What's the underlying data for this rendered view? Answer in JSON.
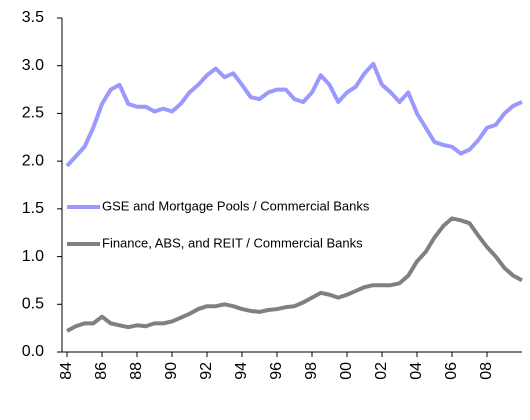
{
  "chart_data": {
    "type": "line",
    "x": [
      1984,
      1984.5,
      1985,
      1985.5,
      1986,
      1986.5,
      1987,
      1987.5,
      1988,
      1988.5,
      1989,
      1989.5,
      1990,
      1990.5,
      1991,
      1991.5,
      1992,
      1992.5,
      1993,
      1993.5,
      1994,
      1994.5,
      1995,
      1995.5,
      1996,
      1996.5,
      1997,
      1997.5,
      1998,
      1998.5,
      1999,
      1999.5,
      2000,
      2000.5,
      2001,
      2001.5,
      2002,
      2002.5,
      2003,
      2003.5,
      2004,
      2004.5,
      2005,
      2005.5,
      2006,
      2006.5,
      2007,
      2007.5,
      2008,
      2008.5,
      2009,
      2009.5,
      2010
    ],
    "series": [
      {
        "name": "GSE and Mortgage Pools / Commercial Banks",
        "color": "#9999ff",
        "values": [
          1.95,
          2.05,
          2.15,
          2.35,
          2.6,
          2.75,
          2.8,
          2.6,
          2.57,
          2.57,
          2.52,
          2.55,
          2.52,
          2.6,
          2.72,
          2.8,
          2.9,
          2.97,
          2.88,
          2.92,
          2.8,
          2.67,
          2.65,
          2.72,
          2.75,
          2.75,
          2.65,
          2.62,
          2.72,
          2.9,
          2.8,
          2.62,
          2.72,
          2.78,
          2.92,
          3.02,
          2.8,
          2.72,
          2.62,
          2.72,
          2.5,
          2.35,
          2.2,
          2.17,
          2.15,
          2.08,
          2.12,
          2.22,
          2.35,
          2.38,
          2.5,
          2.58,
          2.62
        ]
      },
      {
        "name": "Finance, ABS, and REIT / Commercial Banks",
        "color": "#808080",
        "values": [
          0.22,
          0.27,
          0.3,
          0.3,
          0.37,
          0.3,
          0.28,
          0.26,
          0.28,
          0.27,
          0.3,
          0.3,
          0.32,
          0.36,
          0.4,
          0.45,
          0.48,
          0.48,
          0.5,
          0.48,
          0.45,
          0.43,
          0.42,
          0.44,
          0.45,
          0.47,
          0.48,
          0.52,
          0.57,
          0.62,
          0.6,
          0.57,
          0.6,
          0.64,
          0.68,
          0.7,
          0.7,
          0.7,
          0.72,
          0.8,
          0.95,
          1.05,
          1.2,
          1.32,
          1.4,
          1.38,
          1.35,
          1.22,
          1.1,
          1.0,
          0.88,
          0.8,
          0.75
        ]
      }
    ],
    "xlim": [
      1984,
      2010
    ],
    "xticks": [
      {
        "value": 1984,
        "label": "84"
      },
      {
        "value": 1986,
        "label": "86"
      },
      {
        "value": 1988,
        "label": "88"
      },
      {
        "value": 1990,
        "label": "90"
      },
      {
        "value": 1992,
        "label": "92"
      },
      {
        "value": 1994,
        "label": "94"
      },
      {
        "value": 1996,
        "label": "96"
      },
      {
        "value": 1998,
        "label": "98"
      },
      {
        "value": 2000,
        "label": "00"
      },
      {
        "value": 2002,
        "label": "02"
      },
      {
        "value": 2004,
        "label": "04"
      },
      {
        "value": 2006,
        "label": "06"
      },
      {
        "value": 2008,
        "label": "08"
      }
    ],
    "ylim": [
      0,
      3.5
    ],
    "yticks": [
      {
        "value": 0,
        "label": "0.0"
      },
      0.5,
      {
        "value": 1,
        "label": "1.0"
      },
      1.5,
      {
        "value": 2,
        "label": "2.0"
      },
      2.5,
      {
        "value": 3,
        "label": "3.0"
      },
      3.5
    ],
    "grid": false,
    "legend": "left"
  }
}
